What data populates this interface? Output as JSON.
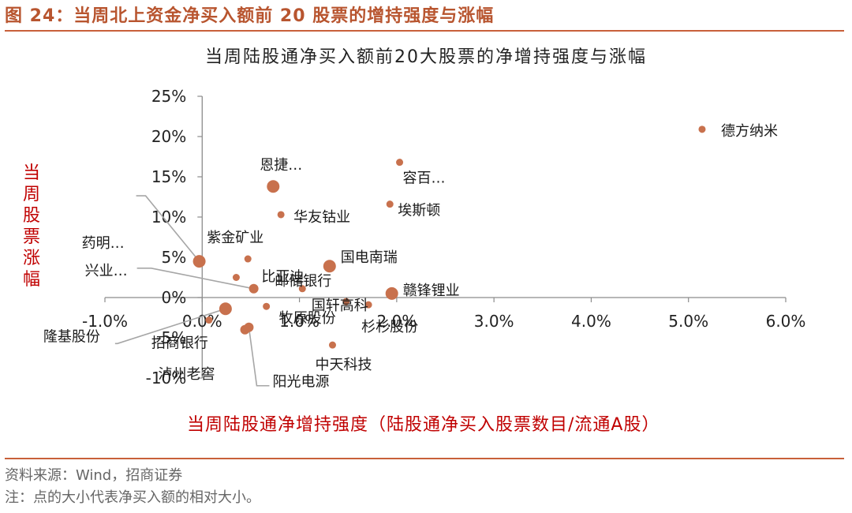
{
  "header": {
    "figure_title": "图 24：当周北上资金净买入额前 20 股票的增持强度与涨幅"
  },
  "notes": {
    "source": "资料来源：Wind，招商证券",
    "note": "注：点的大小代表净买入额的相对大小。"
  },
  "colors": {
    "accent": "#C8603A",
    "point": "#C8714D",
    "axis_title": "#C00000",
    "leader": "#A6A6A6"
  },
  "chart_data": {
    "type": "scatter",
    "title": "当周陆股通净买入额前20大股票的净增持强度与涨幅",
    "xlabel": "当周陆股通净增持强度（陆股通净买入股票数目/流通A股）",
    "ylabel": "当周股票涨幅",
    "xlim": [
      -0.01,
      0.06
    ],
    "ylim": [
      -0.1,
      0.25
    ],
    "x_ticks": [
      -0.01,
      0,
      0.01,
      0.02,
      0.03,
      0.04,
      0.05,
      0.06
    ],
    "x_tick_labels": [
      "-1.0%",
      "0.0%",
      "1.0%",
      "2.0%",
      "3.0%",
      "4.0%",
      "5.0%",
      "6.0%"
    ],
    "y_ticks": [
      -0.1,
      -0.05,
      0,
      0.05,
      0.1,
      0.15,
      0.2,
      0.25
    ],
    "y_tick_labels": [
      "-10%",
      "-5%",
      "0%",
      "5%",
      "10%",
      "15%",
      "20%",
      "25%"
    ],
    "grid": false,
    "legend": "none",
    "points": [
      {
        "name": "德方纳米",
        "x": 0.0514,
        "y": 0.209,
        "size": "small"
      },
      {
        "name": "容百…",
        "x": 0.0203,
        "y": 0.168,
        "size": "small"
      },
      {
        "name": "恩捷…",
        "x": 0.0073,
        "y": 0.138,
        "size": "large"
      },
      {
        "name": "埃斯顿",
        "x": 0.0193,
        "y": 0.116,
        "size": "small"
      },
      {
        "name": "华友钴业",
        "x": 0.0081,
        "y": 0.103,
        "size": "small"
      },
      {
        "name": "药明…",
        "x": -0.0003,
        "y": 0.045,
        "size": "large"
      },
      {
        "name": "紫金矿业",
        "x": 0.0047,
        "y": 0.048,
        "size": "small"
      },
      {
        "name": "比亚迪",
        "x": 0.0035,
        "y": 0.025,
        "size": "small"
      },
      {
        "name": "国电南瑞",
        "x": 0.0131,
        "y": 0.039,
        "size": "large"
      },
      {
        "name": "兴业…",
        "x": 0.0053,
        "y": 0.011,
        "size": "medium"
      },
      {
        "name": "邮储银行",
        "x": 0.0103,
        "y": 0.011,
        "size": "small"
      },
      {
        "name": "赣锋锂业",
        "x": 0.0195,
        "y": 0.005,
        "size": "large"
      },
      {
        "name": "国轩高科",
        "x": 0.0148,
        "y": -0.005,
        "size": "small"
      },
      {
        "name": "杉杉股份",
        "x": 0.0171,
        "y": -0.009,
        "size": "small"
      },
      {
        "name": "牧原股份",
        "x": 0.0066,
        "y": -0.011,
        "size": "small"
      },
      {
        "name": "隆基股份",
        "x": 0.0024,
        "y": -0.014,
        "size": "large"
      },
      {
        "name": "招商银行",
        "x": 0.0007,
        "y": -0.028,
        "size": "small"
      },
      {
        "name": "泸州老窖",
        "x": 0.0044,
        "y": -0.04,
        "size": "medium"
      },
      {
        "name": "阳光电源",
        "x": 0.0048,
        "y": -0.037,
        "size": "medium"
      },
      {
        "name": "中天科技",
        "x": 0.0134,
        "y": -0.059,
        "size": "small"
      }
    ]
  }
}
